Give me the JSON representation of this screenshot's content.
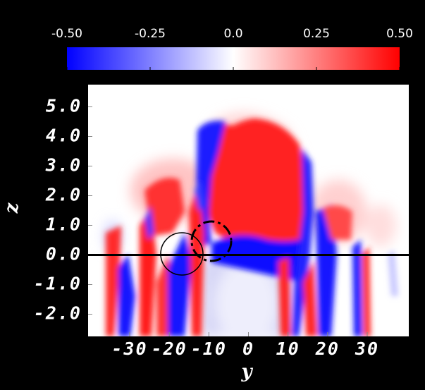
{
  "chart_data": {
    "type": "heatmap",
    "xlabel": "y",
    "ylabel": "z",
    "xlim": [
      -40.5,
      40.5
    ],
    "ylim": [
      -2.75,
      5.75
    ],
    "xticks": [
      -30,
      -20,
      -10,
      0,
      10,
      20,
      30
    ],
    "yticks": [
      {
        "value": 5,
        "label": "5.0"
      },
      {
        "value": 4,
        "label": "4.0"
      },
      {
        "value": 3,
        "label": "3.0"
      },
      {
        "value": 2,
        "label": "2.0"
      },
      {
        "value": 1,
        "label": "1.0"
      },
      {
        "value": 0,
        "label": "0.0"
      },
      {
        "value": -1,
        "label": "-1.0"
      },
      {
        "value": -2,
        "label": "-2.0"
      }
    ],
    "hline": 0,
    "grid": false,
    "colorbar": {
      "clim": [
        -0.5,
        0.5
      ],
      "ticks": [
        {
          "value": -0.5,
          "label": "-0.50"
        },
        {
          "value": -0.25,
          "label": "-0.25"
        },
        {
          "value": 0,
          "label": "0.0"
        },
        {
          "value": 0.25,
          "label": "0.25"
        },
        {
          "value": 0.5,
          "label": "0.50"
        }
      ],
      "colors": [
        "#0000ff",
        "#ffffff",
        "#ff0000"
      ]
    }
  }
}
